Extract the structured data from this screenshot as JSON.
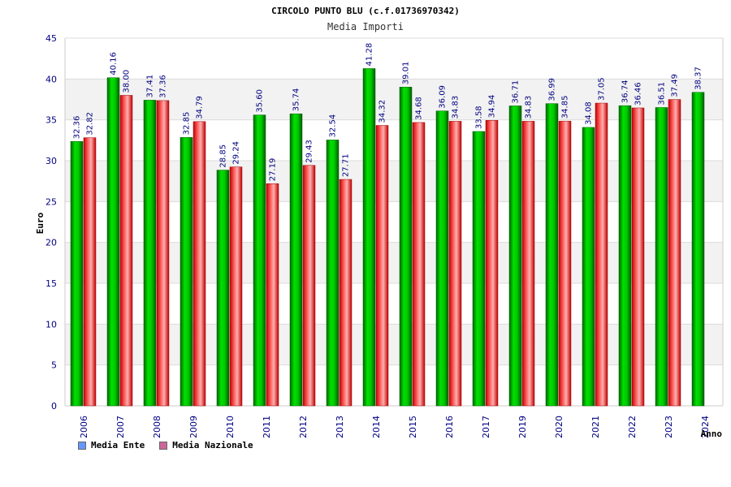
{
  "chart_data": {
    "type": "bar",
    "title": "CIRCOLO PUNTO BLU (c.f.01736970342)",
    "subtitle": "Media Importi",
    "ylabel": "Euro",
    "xlabel": "Anno",
    "ylim": [
      0,
      45
    ],
    "yticks": [
      "0",
      "5",
      "10",
      "15",
      "20",
      "25",
      "30",
      "35",
      "40",
      "45"
    ],
    "categories": [
      "2006",
      "2007",
      "2008",
      "2009",
      "2010",
      "2011",
      "2012",
      "2013",
      "2014",
      "2015",
      "2016",
      "2017",
      "2019",
      "2020",
      "2021",
      "2022",
      "2023",
      "2024"
    ],
    "series": [
      {
        "name": "Media Ente",
        "color": "#00c000",
        "values": [
          32.36,
          40.16,
          37.41,
          32.85,
          28.85,
          35.6,
          35.74,
          32.54,
          41.28,
          39.01,
          36.09,
          33.58,
          36.71,
          36.99,
          34.08,
          36.74,
          36.51,
          38.37
        ],
        "labels": [
          "32.36",
          "40.16",
          "37.41",
          "32.85",
          "28.85",
          "35.60",
          "35.74",
          "32.54",
          "41.28",
          "39.01",
          "36.09",
          "33.58",
          "36.71",
          "36.99",
          "34.08",
          "36.74",
          "36.51",
          "38.37"
        ]
      },
      {
        "name": "Media Nazionale",
        "color": "#e83030",
        "values": [
          32.82,
          38.0,
          37.36,
          34.79,
          29.24,
          27.19,
          29.43,
          27.71,
          34.32,
          34.68,
          34.83,
          34.94,
          34.83,
          34.85,
          37.05,
          36.46,
          37.49,
          null
        ],
        "labels": [
          "32.82",
          "38.00",
          "37.36",
          "34.79",
          "29.24",
          "27.19",
          "29.43",
          "27.71",
          "34.32",
          "34.68",
          "34.83",
          "34.94",
          "34.83",
          "34.85",
          "37.05",
          "36.46",
          "37.49",
          ""
        ]
      }
    ],
    "legend": {
      "position": "bottom-left",
      "items": [
        {
          "label": "Media Ente",
          "color": "#6699ff"
        },
        {
          "label": "Media Nazionale",
          "color": "#cc6699"
        }
      ]
    },
    "grid": true
  }
}
